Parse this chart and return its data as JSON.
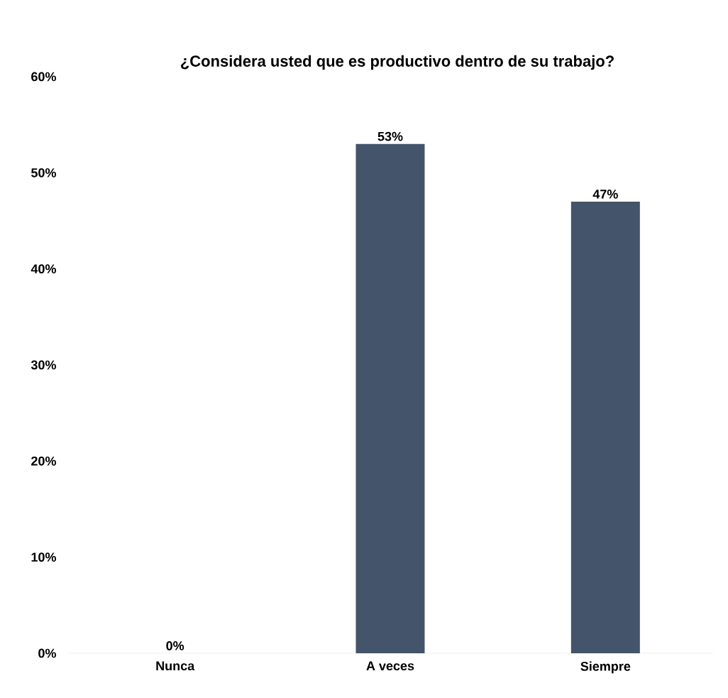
{
  "chart_data": {
    "type": "bar",
    "title": "¿Considera usted que es productivo dentro de su trabajo?",
    "categories": [
      "Nunca",
      "A veces",
      "Siempre"
    ],
    "values": [
      0,
      53,
      47
    ],
    "value_labels": [
      "0%",
      "53%",
      "47%"
    ],
    "color": "#44546a",
    "ylim": [
      0,
      60
    ],
    "yticks": [
      {
        "value": 0,
        "label": "0%"
      },
      {
        "value": 10,
        "label": "10%"
      },
      {
        "value": 20,
        "label": "20%"
      },
      {
        "value": 30,
        "label": "30%"
      },
      {
        "value": 40,
        "label": "40%"
      },
      {
        "value": 50,
        "label": "50%"
      },
      {
        "value": 60,
        "label": "60%"
      }
    ]
  }
}
